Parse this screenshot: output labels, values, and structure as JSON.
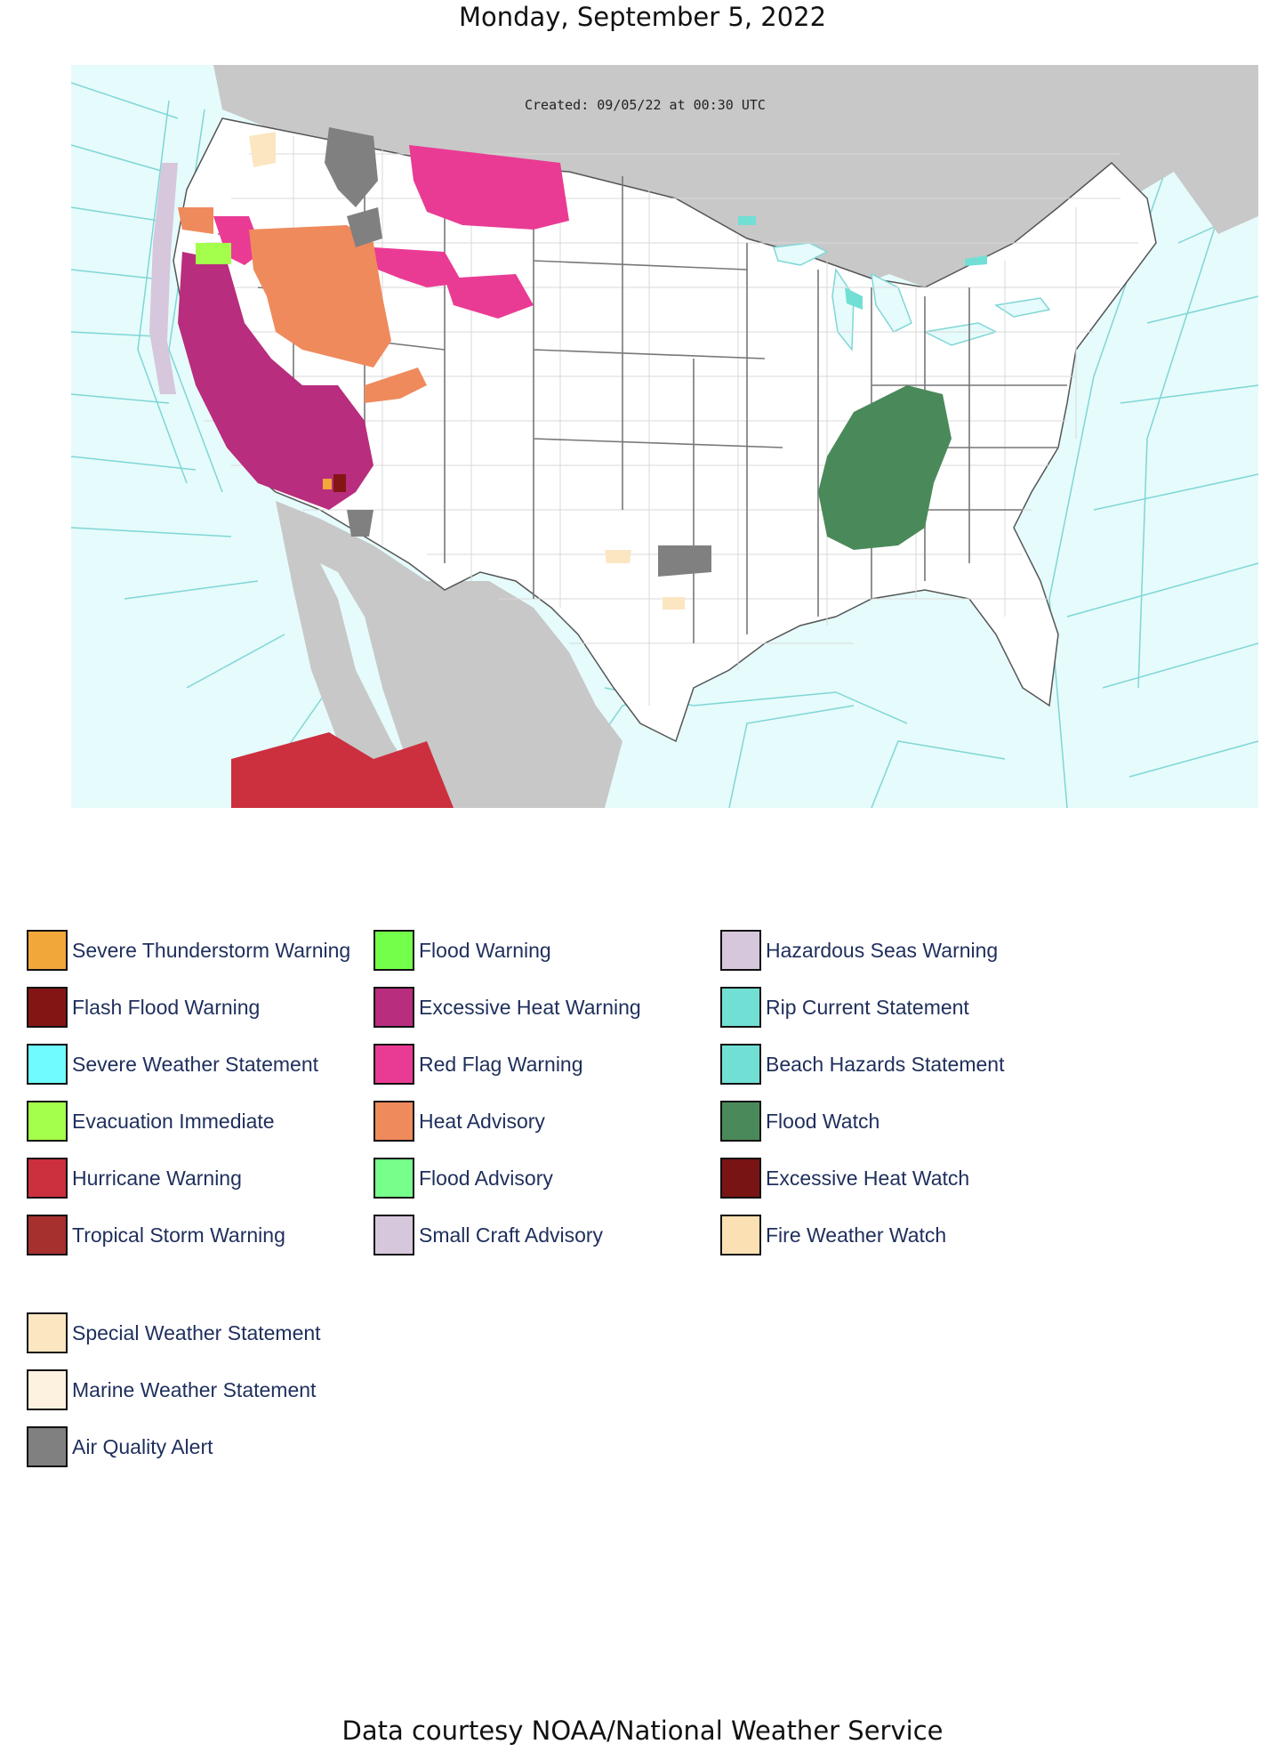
{
  "page": {
    "title": "Monday, September 5, 2022",
    "credit": "Data courtesy NOAA/National Weather Service"
  },
  "map": {
    "created_stamp": "Created: 09/05/22 at 00:30 UTC",
    "colors": {
      "ocean": "#e6fbfb",
      "land_foreign": "#c8c8c8",
      "land_us": "#ffffff",
      "borders": "#7fd6d6"
    }
  },
  "legend": {
    "col1": [
      {
        "label": "Severe Thunderstorm Warning",
        "color": "#f2a73a"
      },
      {
        "label": "Flash Flood Warning",
        "color": "#841515"
      },
      {
        "label": "Severe Weather Statement",
        "color": "#6ffbff"
      },
      {
        "label": "Evacuation Immediate",
        "color": "#a4ff4d"
      },
      {
        "label": "Hurricane Warning",
        "color": "#cc2f3e"
      },
      {
        "label": "Tropical Storm Warning",
        "color": "#a5302e"
      }
    ],
    "col2": [
      {
        "label": "Flood Warning",
        "color": "#73ff4a"
      },
      {
        "label": "Excessive Heat Warning",
        "color": "#b82d7d"
      },
      {
        "label": "Red Flag Warning",
        "color": "#ea3b94"
      },
      {
        "label": "Heat Advisory",
        "color": "#ef8a5c"
      },
      {
        "label": "Flood Advisory",
        "color": "#76ff8b"
      },
      {
        "label": "Small Craft Advisory",
        "color": "#d6c7dc"
      }
    ],
    "col3": [
      {
        "label": "Hazardous Seas Warning",
        "color": "#d6c7dc"
      },
      {
        "label": "Rip Current Statement",
        "color": "#72dfd4"
      },
      {
        "label": "Beach Hazards Statement",
        "color": "#72dfd4"
      },
      {
        "label": "Flood Watch",
        "color": "#4a8a5a"
      },
      {
        "label": "Excessive Heat Watch",
        "color": "#791414"
      },
      {
        "label": "Fire Weather Watch",
        "color": "#fbe0b3"
      }
    ],
    "col4": [
      {
        "label": "Special Weather Statement",
        "color": "#fbe6c1"
      },
      {
        "label": "Marine Weather Statement",
        "color": "#fdf1e0"
      },
      {
        "label": "Air Quality Alert",
        "color": "#808080"
      }
    ]
  }
}
